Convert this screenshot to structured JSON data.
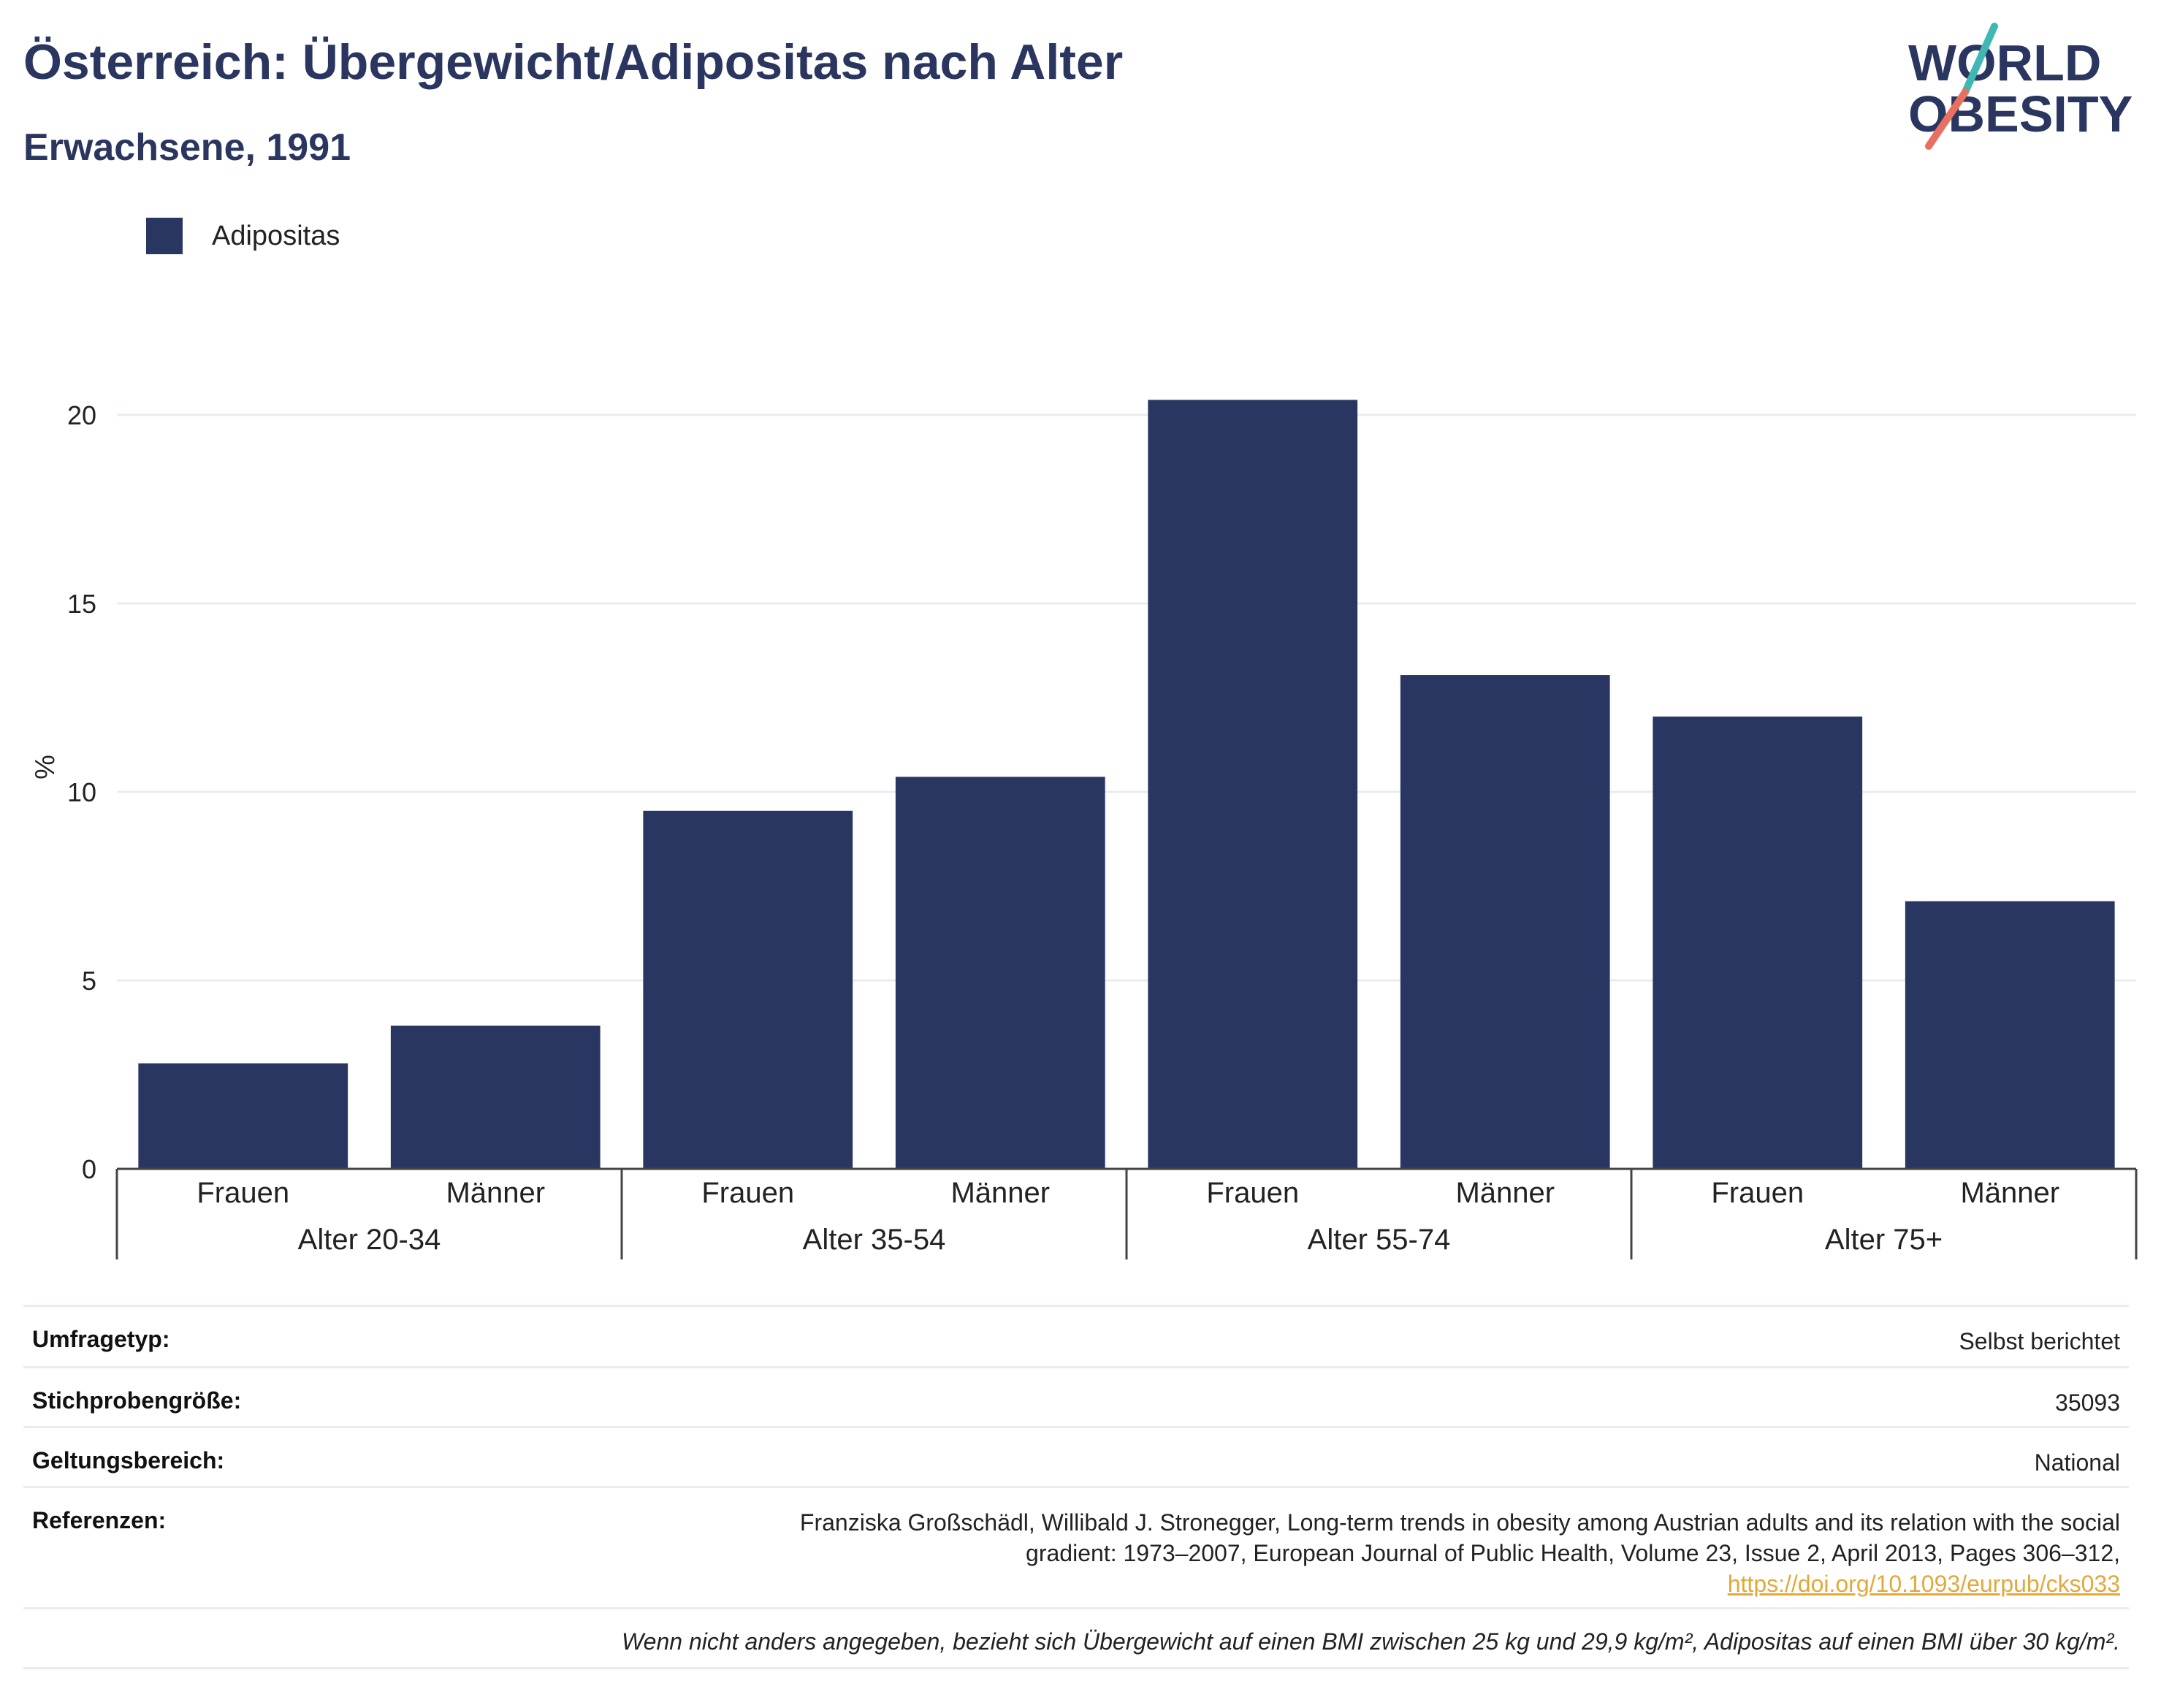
{
  "header": {
    "title": "Österreich: Übergewicht/Adipositas nach Alter",
    "subtitle": "Erwachsene, 1991"
  },
  "logo": {
    "line1": "WORLD",
    "line2": "OBESITY",
    "accent_colors": [
      "#3fb8b3",
      "#e8705f"
    ]
  },
  "legend": {
    "items": [
      {
        "label": "Adipositas",
        "color": "#2a3662"
      }
    ]
  },
  "chart_data": {
    "type": "bar",
    "ylabel": "%",
    "ylim": [
      0,
      22
    ],
    "yticks": [
      0,
      5,
      10,
      15,
      20
    ],
    "grid": true,
    "legend_position": "top-left",
    "groups": [
      {
        "label": "Alter 20-34",
        "categories": [
          "Frauen",
          "Männer"
        ]
      },
      {
        "label": "Alter 35-54",
        "categories": [
          "Frauen",
          "Männer"
        ]
      },
      {
        "label": "Alter 55-74",
        "categories": [
          "Frauen",
          "Männer"
        ]
      },
      {
        "label": "Alter 75+",
        "categories": [
          "Frauen",
          "Männer"
        ]
      }
    ],
    "series": [
      {
        "name": "Adipositas",
        "color": "#2a3662",
        "values": [
          2.8,
          3.8,
          9.5,
          10.4,
          20.4,
          13.1,
          12.0,
          7.1
        ]
      }
    ]
  },
  "info": {
    "rows": [
      {
        "key": "Umfragetyp:",
        "value": "Selbst berichtet"
      },
      {
        "key": "Stichprobengröße:",
        "value": "35093"
      },
      {
        "key": "Geltungsbereich:",
        "value": "National"
      }
    ],
    "reference": {
      "key": "Referenzen:",
      "line1": "Franziska Großschädl, Willibald J. Stronegger, Long-term trends in obesity among Austrian adults and its relation with the social",
      "line2": "gradient: 1973–2007, European Journal of Public Health, Volume 23, Issue 2, April 2013, Pages 306–312,",
      "link": "https://doi.org/10.1093/eurpub/cks033"
    },
    "note": "Wenn nicht anders angegeben, bezieht sich Übergewicht auf einen BMI zwischen 25 kg und 29,9 kg/m², Adipositas auf einen BMI über 30 kg/m²."
  }
}
